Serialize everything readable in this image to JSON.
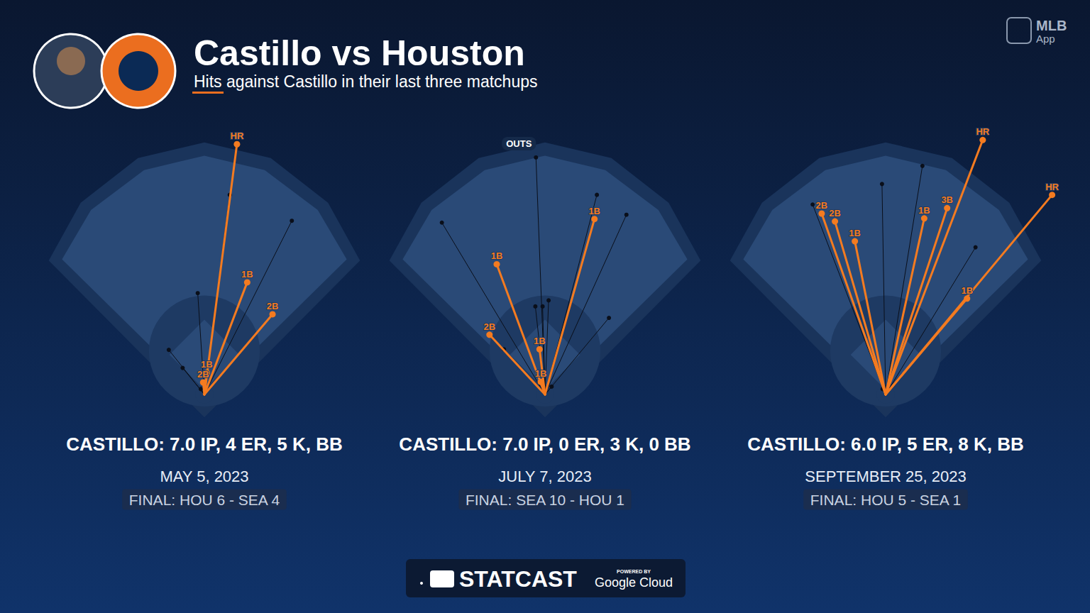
{
  "header": {
    "title": "Castillo vs Houston",
    "subtitle": "Hits against Castillo in their last three matchups",
    "app_label": "MLB",
    "app_sublabel": "App"
  },
  "chart_data": [
    {
      "type": "spray",
      "title": "CASTILLO: 7.0 IP, 4 ER, 5 K, BB",
      "date": "MAY 5, 2023",
      "result": "FINAL: HOU 6 - SEA 4",
      "xlim": [
        -290,
        290
      ],
      "ylim": [
        -40,
        460
      ],
      "tick_labels": false,
      "color": "#f47b20",
      "hits": {
        "labels": [
          "HR",
          "1B",
          "2B",
          "1B",
          "2B"
        ],
        "x": [
          54,
          71,
          113,
          4,
          -2
        ],
        "y": [
          415,
          186,
          133,
          36,
          20
        ]
      },
      "outs": {
        "x": [
          42,
          145,
          -11,
          -59,
          -36,
          -6
        ],
        "y": [
          331,
          288,
          168,
          74,
          44,
          9
        ]
      }
    },
    {
      "type": "spray",
      "title": "CASTILLO: 7.0 IP, 0 ER, 3 K, 0 BB",
      "date": "JULY 7, 2023",
      "result": "FINAL: SEA 10 - HOU 1",
      "xlim": [
        -290,
        290
      ],
      "ylim": [
        -40,
        460
      ],
      "tick_labels": false,
      "color": "#f47b20",
      "outs_label": "OUTS",
      "hits": {
        "labels": [
          "1B",
          "1B",
          "2B",
          "1B",
          "1B"
        ],
        "x": [
          82,
          -80,
          -92,
          -9,
          -7
        ],
        "y": [
          291,
          216,
          99,
          75,
          21
        ]
      },
      "outs": {
        "x": [
          -15,
          -171,
          86,
          135,
          106,
          6,
          -4,
          -16,
          -68,
          11
        ],
        "y": [
          393,
          285,
          331,
          298,
          127,
          156,
          146,
          146,
          75,
          13
        ]
      }
    },
    {
      "type": "spray",
      "title": "CASTILLO: 6.0 IP, 5 ER, 8 K, BB",
      "date": "SEPTEMBER 25, 2023",
      "result": "FINAL: HOU 5 - SEA 1",
      "xlim": [
        -290,
        290
      ],
      "ylim": [
        -40,
        460
      ],
      "tick_labels": false,
      "color": "#f47b20",
      "hits": {
        "labels": [
          "HR",
          "HR",
          "2B",
          "2B",
          "1B",
          "1B",
          "3B",
          "1B"
        ],
        "x": [
          161,
          276,
          -106,
          -84,
          -51,
          64,
          102,
          135
        ],
        "y": [
          422,
          331,
          300,
          287,
          254,
          292,
          309,
          159
        ]
      },
      "outs": {
        "x": [
          -121,
          -6,
          61,
          149,
          -5
        ],
        "y": [
          315,
          349,
          379,
          244,
          9
        ]
      }
    }
  ],
  "footer": {
    "brand": "STATCAST",
    "powered": "POWERED BY",
    "partner": "Google Cloud"
  }
}
